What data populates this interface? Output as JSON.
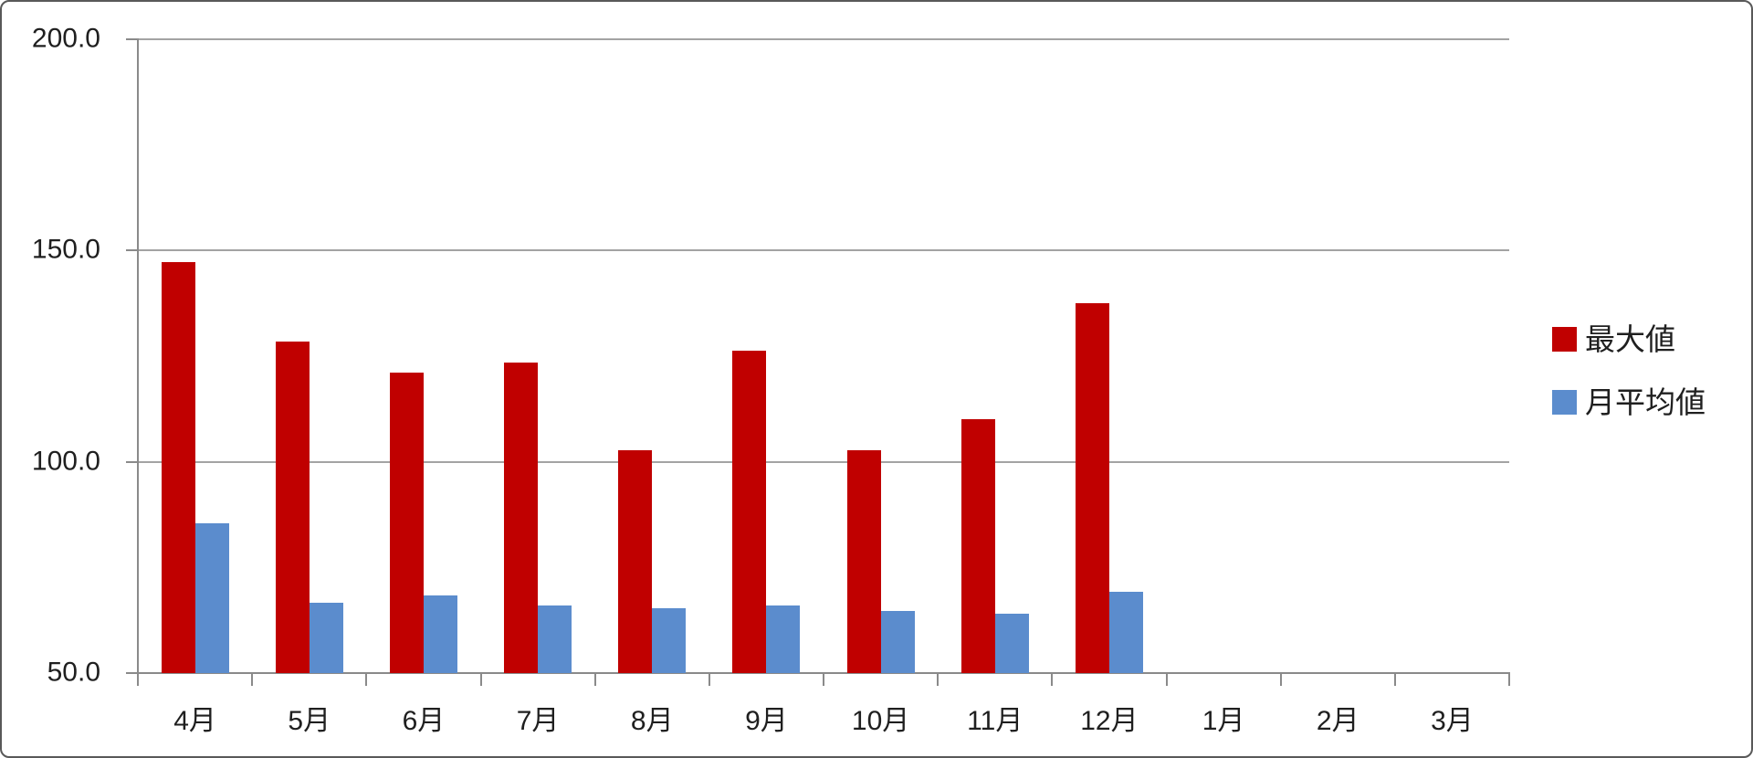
{
  "chart_data": {
    "type": "bar",
    "title": "",
    "xlabel": "",
    "ylabel": "",
    "categories": [
      "4月",
      "5月",
      "6月",
      "7月",
      "8月",
      "9月",
      "10月",
      "11月",
      "12月",
      "1月",
      "2月",
      "3月"
    ],
    "series": [
      {
        "name": "最大値",
        "color": "#C00000",
        "values": [
          147.2,
          128.4,
          121.2,
          123.5,
          102.7,
          126.4,
          102.8,
          110.0,
          137.6,
          null,
          null,
          null
        ]
      },
      {
        "name": "月平均値",
        "color": "#5B8CCD",
        "values": [
          85.5,
          66.7,
          68.3,
          66.1,
          65.4,
          66.1,
          64.6,
          64.0,
          69.3,
          null,
          null,
          null
        ]
      }
    ],
    "ylim": [
      50,
      200
    ],
    "yticks": [
      200,
      150,
      100,
      50
    ],
    "ytick_labels": [
      "200.0",
      "150.0",
      "100.0",
      "50.0"
    ],
    "grid": true,
    "legend_position": "right",
    "colors": {
      "grid": "#A3A3A3",
      "axis": "#8A8A8A",
      "text": "#1F1F1F",
      "frame_border": "#595959",
      "background": "#FFFFFF"
    }
  }
}
